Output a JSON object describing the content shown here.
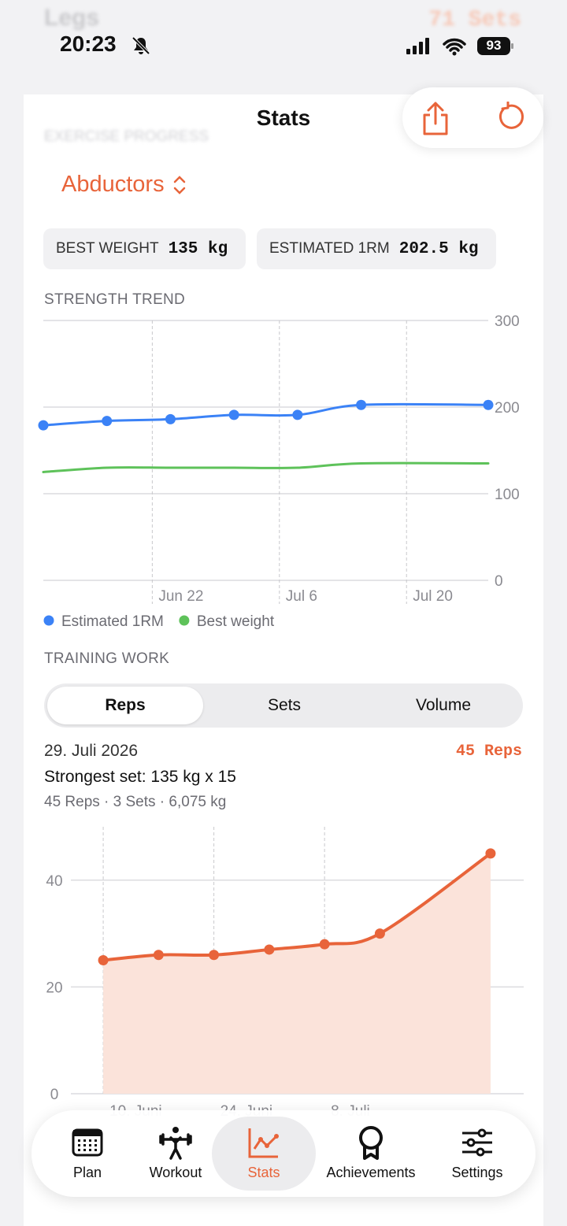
{
  "status_bar": {
    "time": "20:23",
    "battery": "93"
  },
  "background": {
    "title": "Legs",
    "badge": "71 Sets",
    "section": "EXERCISE PROGRESS"
  },
  "nav": {
    "title": "Stats"
  },
  "exercise": "Abductors",
  "stats": [
    {
      "label": "BEST WEIGHT",
      "value": "135 kg"
    },
    {
      "label": "ESTIMATED 1RM",
      "value": "202.5 kg"
    }
  ],
  "strength_title": "STRENGTH TREND",
  "training_work": {
    "title": "TRAINING WORK",
    "tabs": [
      "Reps",
      "Sets",
      "Volume"
    ],
    "selected_tab": 0,
    "selection": {
      "date": "29. Juli 2026",
      "value": "45 Reps",
      "strongest_set": "Strongest set: 135 kg x 15",
      "summary": "45 Reps · 3 Sets · 6,075 kg"
    }
  },
  "chart_data": [
    {
      "type": "line",
      "x": [
        "Jun 10",
        "Jun 17",
        "Jun 24",
        "Jul 1",
        "Jul 8",
        "Jul 15",
        "Jul 29"
      ],
      "series": [
        {
          "name": "Estimated 1RM",
          "color": "#3b82f6",
          "markers": true,
          "values": [
            179,
            184,
            186,
            191,
            191,
            202.5,
            202.5
          ]
        },
        {
          "name": "Best weight",
          "color": "#5ec25a",
          "markers": false,
          "values": [
            125,
            130,
            130,
            130,
            130,
            135,
            135
          ]
        }
      ],
      "xlim": [
        "Jun 10",
        "Jul 29"
      ],
      "xticks": [
        "Jun 22",
        "Jul 6",
        "Jul 20"
      ],
      "ylim": [
        0,
        300
      ],
      "yticks": [
        0,
        100,
        200,
        300
      ],
      "grid": true,
      "legend": "bottom"
    },
    {
      "type": "area",
      "x": [
        "10. Juni",
        "17. Juni",
        "24. Juni",
        "1. Juli",
        "8. Juli",
        "15. Juli",
        "29. Juli"
      ],
      "series": [
        {
          "name": "Reps",
          "color": "#e8643a",
          "fill": "#fbe3da",
          "markers": true,
          "values": [
            25,
            26,
            26,
            27,
            28,
            30,
            45
          ]
        }
      ],
      "xlim": [
        "8. Juni",
        "31. Juli"
      ],
      "xticks": [
        "10. Juni",
        "24. Juni",
        "8. Juli"
      ],
      "ylim": [
        0,
        50
      ],
      "yticks": [
        0,
        20,
        40
      ],
      "grid": true
    }
  ],
  "tab_bar": [
    "Plan",
    "Workout",
    "Stats",
    "Achievements",
    "Settings"
  ],
  "active_tab": 2
}
